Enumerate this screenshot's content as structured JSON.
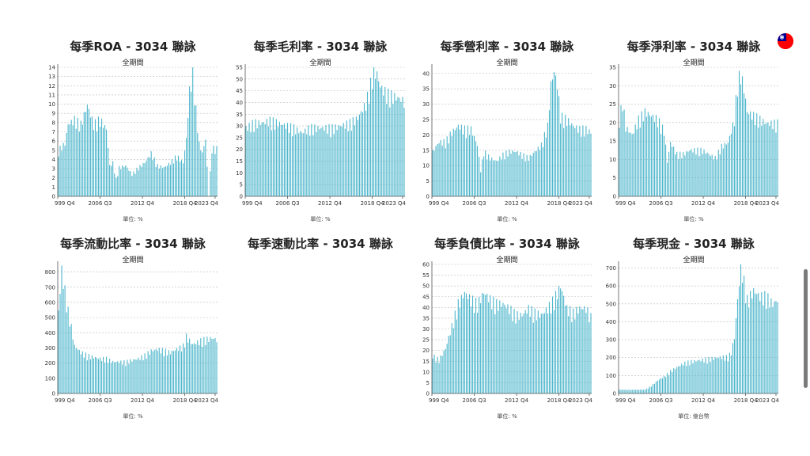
{
  "unit_percent": "單位: %",
  "flag_icon": "taiwan-flag-icon",
  "colors": {
    "bar": "#4db6cc",
    "grid": "#bbbbbb",
    "axis": "#555555"
  },
  "chart_data": [
    {
      "id": "roa",
      "type": "bar",
      "title": "每季ROA - 3034 聯詠",
      "subtitle": "全期間",
      "unit": "單位: %",
      "yticks": [
        0,
        1,
        2,
        3,
        4,
        5,
        6,
        7,
        8,
        9,
        10,
        11,
        12,
        13,
        14
      ],
      "ylim": [
        0,
        14
      ],
      "xticks": [
        "999 Q4",
        "2006 Q3",
        "2012 Q4",
        "2018 Q4",
        "2023 Q4"
      ],
      "profile": [
        [
          0,
          4.8
        ],
        [
          2,
          5.2
        ],
        [
          4,
          5.5
        ],
        [
          6,
          7.5
        ],
        [
          10,
          8
        ],
        [
          14,
          7.5
        ],
        [
          18,
          9.5
        ],
        [
          22,
          7.5
        ],
        [
          26,
          8
        ],
        [
          30,
          7
        ],
        [
          32,
          3.2
        ],
        [
          34,
          3.5
        ],
        [
          36,
          1.8
        ],
        [
          38,
          3
        ],
        [
          42,
          3.2
        ],
        [
          46,
          2.3
        ],
        [
          50,
          3
        ],
        [
          54,
          3.5
        ],
        [
          58,
          4.5
        ],
        [
          62,
          3.2
        ],
        [
          66,
          3
        ],
        [
          70,
          3.5
        ],
        [
          74,
          4.2
        ],
        [
          78,
          3.5
        ],
        [
          80,
          6
        ],
        [
          82,
          11
        ],
        [
          84,
          12.8
        ],
        [
          86,
          9
        ],
        [
          88,
          5.5
        ],
        [
          90,
          4.5
        ],
        [
          92,
          6
        ],
        [
          94,
          0
        ],
        [
          96,
          5
        ],
        [
          99,
          5
        ]
      ]
    },
    {
      "id": "gross-margin",
      "type": "bar",
      "title": "每季毛利率 - 3034 聯詠",
      "subtitle": "全期間",
      "unit": "單位: %",
      "yticks": [
        0,
        5,
        10,
        15,
        20,
        25,
        30,
        35,
        40,
        45,
        50,
        55
      ],
      "ylim": [
        0,
        55
      ],
      "xticks": [
        "999 Q4",
        "2006 Q3",
        "2012 Q4",
        "2018 Q4",
        "2023 Q4"
      ],
      "profile": [
        [
          0,
          28
        ],
        [
          5,
          30
        ],
        [
          10,
          30
        ],
        [
          15,
          31
        ],
        [
          20,
          30
        ],
        [
          25,
          29
        ],
        [
          30,
          28
        ],
        [
          35,
          26
        ],
        [
          40,
          28
        ],
        [
          45,
          28
        ],
        [
          50,
          28
        ],
        [
          55,
          28
        ],
        [
          60,
          29
        ],
        [
          65,
          30
        ],
        [
          70,
          32
        ],
        [
          75,
          38
        ],
        [
          78,
          46
        ],
        [
          80,
          51
        ],
        [
          82,
          50
        ],
        [
          84,
          45
        ],
        [
          88,
          42
        ],
        [
          92,
          41
        ],
        [
          96,
          40
        ],
        [
          99,
          39
        ]
      ]
    },
    {
      "id": "operating-margin",
      "type": "bar",
      "title": "每季營利率 - 3034 聯詠",
      "subtitle": "全期間",
      "unit": "單位: %",
      "yticks": [
        0,
        5,
        10,
        15,
        20,
        25,
        30,
        35,
        40
      ],
      "ylim": [
        0,
        42
      ],
      "xticks": [
        "999 Q4",
        "2006 Q3",
        "2012 Q4",
        "2018 Q4",
        "2023 Q4"
      ],
      "profile": [
        [
          0,
          14
        ],
        [
          4,
          17
        ],
        [
          8,
          17
        ],
        [
          12,
          20
        ],
        [
          16,
          22
        ],
        [
          20,
          21
        ],
        [
          24,
          21
        ],
        [
          28,
          16
        ],
        [
          30,
          8
        ],
        [
          32,
          14
        ],
        [
          36,
          12
        ],
        [
          40,
          11
        ],
        [
          44,
          13
        ],
        [
          48,
          14
        ],
        [
          52,
          14
        ],
        [
          56,
          13
        ],
        [
          60,
          12
        ],
        [
          64,
          14
        ],
        [
          68,
          16
        ],
        [
          72,
          22
        ],
        [
          74,
          35
        ],
        [
          76,
          39
        ],
        [
          78,
          35
        ],
        [
          80,
          25
        ],
        [
          84,
          24
        ],
        [
          88,
          22
        ],
        [
          92,
          21
        ],
        [
          96,
          21
        ],
        [
          99,
          20
        ]
      ]
    },
    {
      "id": "net-margin",
      "type": "bar",
      "title": "每季淨利率 - 3034 聯詠",
      "subtitle": "全期間",
      "unit": "單位: %",
      "yticks": [
        0,
        5,
        10,
        15,
        20,
        25,
        30,
        35
      ],
      "ylim": [
        0,
        35
      ],
      "xticks": [
        "999 Q4",
        "2006 Q3",
        "2012 Q4",
        "2018 Q4",
        "2023 Q4"
      ],
      "profile": [
        [
          0,
          20
        ],
        [
          2,
          25
        ],
        [
          4,
          18
        ],
        [
          8,
          16
        ],
        [
          12,
          20
        ],
        [
          16,
          22
        ],
        [
          20,
          21
        ],
        [
          24,
          20
        ],
        [
          28,
          17
        ],
        [
          30,
          9
        ],
        [
          32,
          14
        ],
        [
          36,
          11
        ],
        [
          40,
          11
        ],
        [
          44,
          12
        ],
        [
          48,
          12
        ],
        [
          52,
          12
        ],
        [
          56,
          11
        ],
        [
          60,
          10
        ],
        [
          64,
          13
        ],
        [
          68,
          14
        ],
        [
          72,
          20
        ],
        [
          74,
          30
        ],
        [
          76,
          32
        ],
        [
          78,
          28
        ],
        [
          80,
          22
        ],
        [
          84,
          21
        ],
        [
          88,
          20
        ],
        [
          92,
          19
        ],
        [
          96,
          19
        ],
        [
          99,
          19
        ]
      ]
    },
    {
      "id": "current-ratio",
      "type": "bar",
      "title": "每季流動比率 - 3034 聯詠",
      "subtitle": "全期間",
      "unit": "單位: %",
      "yticks": [
        0,
        100,
        200,
        300,
        400,
        500,
        600,
        700,
        800
      ],
      "ylim": [
        0,
        850
      ],
      "xticks": [
        "999 Q4",
        "2006 Q3",
        "2012 Q4",
        "2018 Q4",
        "2023 Q4"
      ],
      "profile": [
        [
          0,
          520
        ],
        [
          2,
          780
        ],
        [
          4,
          650
        ],
        [
          6,
          520
        ],
        [
          8,
          420
        ],
        [
          10,
          300
        ],
        [
          14,
          260
        ],
        [
          18,
          240
        ],
        [
          22,
          230
        ],
        [
          26,
          220
        ],
        [
          30,
          220
        ],
        [
          34,
          200
        ],
        [
          38,
          200
        ],
        [
          42,
          200
        ],
        [
          46,
          210
        ],
        [
          50,
          220
        ],
        [
          54,
          240
        ],
        [
          58,
          270
        ],
        [
          62,
          280
        ],
        [
          66,
          270
        ],
        [
          70,
          260
        ],
        [
          74,
          280
        ],
        [
          78,
          300
        ],
        [
          80,
          360
        ],
        [
          84,
          310
        ],
        [
          88,
          330
        ],
        [
          92,
          340
        ],
        [
          96,
          350
        ],
        [
          99,
          340
        ]
      ]
    },
    {
      "id": "quick-ratio",
      "type": "bar",
      "title": "每季速動比率 - 3034 聯詠",
      "subtitle": "",
      "unit": "",
      "yticks": [],
      "ylim": [
        0,
        1
      ],
      "xticks": [],
      "profile": []
    },
    {
      "id": "debt-ratio",
      "type": "bar",
      "title": "每季負債比率 - 3034 聯詠",
      "subtitle": "全期間",
      "unit": "單位: %",
      "yticks": [
        0,
        5,
        10,
        15,
        20,
        25,
        30,
        35,
        40,
        45,
        50,
        55,
        60
      ],
      "ylim": [
        0,
        60
      ],
      "xticks": [
        "999 Q4",
        "2006 Q3",
        "2012 Q4",
        "2018 Q4",
        "2023 Q4"
      ],
      "profile": [
        [
          0,
          17
        ],
        [
          4,
          15
        ],
        [
          8,
          20
        ],
        [
          12,
          30
        ],
        [
          16,
          40
        ],
        [
          20,
          45
        ],
        [
          24,
          42
        ],
        [
          28,
          40
        ],
        [
          32,
          45
        ],
        [
          36,
          42
        ],
        [
          40,
          40
        ],
        [
          44,
          40
        ],
        [
          48,
          38
        ],
        [
          52,
          35
        ],
        [
          56,
          35
        ],
        [
          60,
          38
        ],
        [
          64,
          36
        ],
        [
          68,
          35
        ],
        [
          72,
          38
        ],
        [
          76,
          42
        ],
        [
          80,
          48
        ],
        [
          84,
          38
        ],
        [
          88,
          36
        ],
        [
          92,
          38
        ],
        [
          96,
          38
        ],
        [
          99,
          34
        ]
      ]
    },
    {
      "id": "cash",
      "type": "bar",
      "title": "每季現金 - 3034 聯詠",
      "subtitle": "全期間",
      "unit": "單位: 億台幣",
      "yticks": [
        0,
        100,
        200,
        300,
        400,
        500,
        600,
        700
      ],
      "ylim": [
        0,
        720
      ],
      "xticks": [
        "999 Q4",
        "2006 Q3",
        "2012 Q4",
        "2018 Q4",
        "2023 Q4"
      ],
      "profile": [
        [
          0,
          20
        ],
        [
          10,
          20
        ],
        [
          16,
          20
        ],
        [
          20,
          40
        ],
        [
          24,
          70
        ],
        [
          28,
          90
        ],
        [
          32,
          120
        ],
        [
          36,
          140
        ],
        [
          40,
          160
        ],
        [
          44,
          170
        ],
        [
          48,
          175
        ],
        [
          52,
          180
        ],
        [
          56,
          185
        ],
        [
          60,
          190
        ],
        [
          64,
          195
        ],
        [
          68,
          195
        ],
        [
          70,
          220
        ],
        [
          72,
          300
        ],
        [
          74,
          500
        ],
        [
          76,
          680
        ],
        [
          78,
          600
        ],
        [
          80,
          500
        ],
        [
          84,
          550
        ],
        [
          88,
          520
        ],
        [
          92,
          520
        ],
        [
          96,
          480
        ],
        [
          99,
          500
        ]
      ]
    }
  ]
}
